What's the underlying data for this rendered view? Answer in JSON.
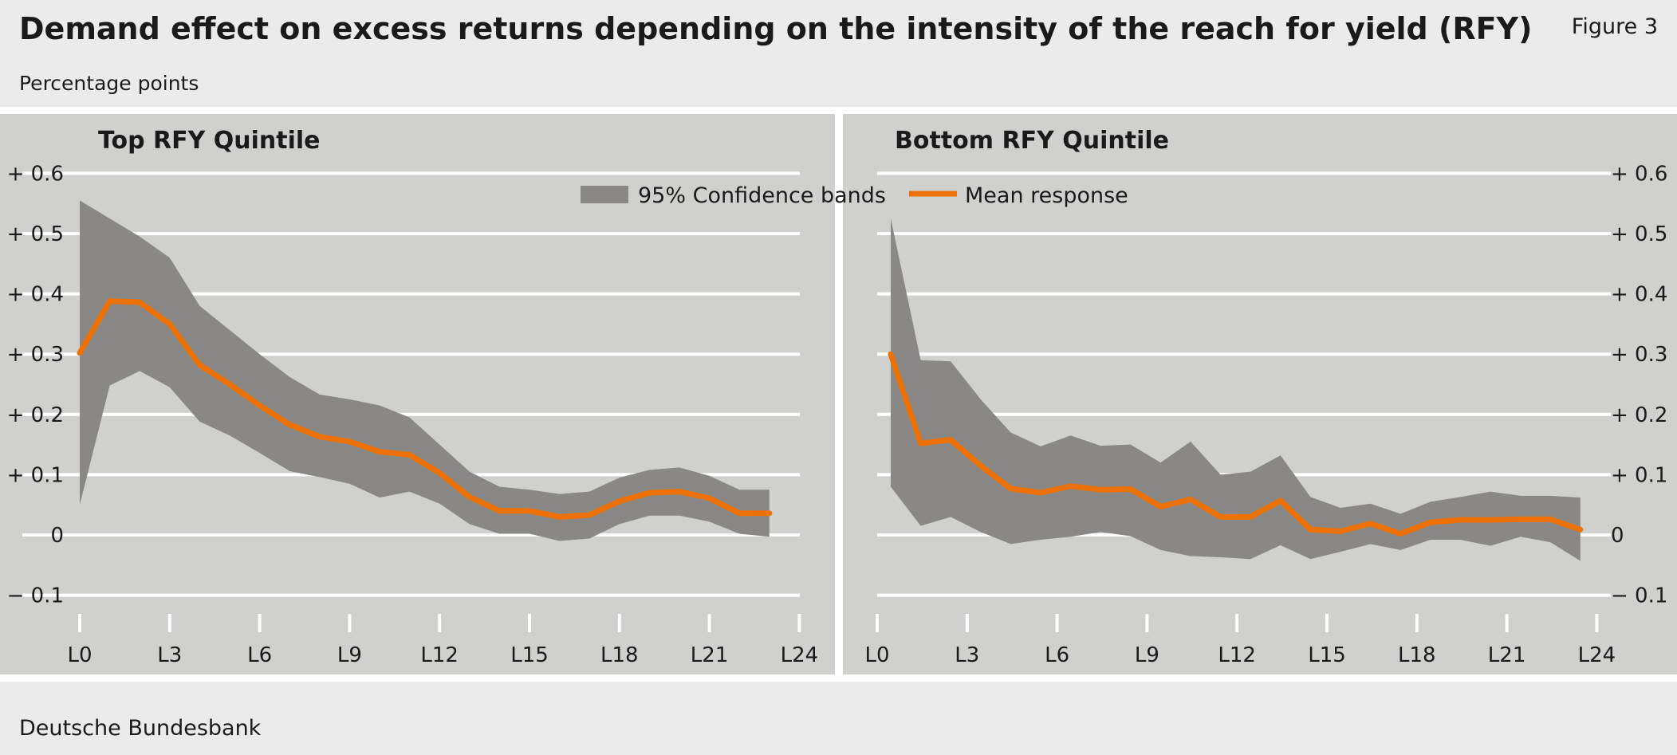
{
  "header": {
    "title": "Demand effect on excess returns depending on the intensity of the reach for yield (RFY)",
    "figure_label": "Figure 3",
    "subtitle": "Percentage points"
  },
  "footer": {
    "source": "Deutsche Bundesbank"
  },
  "colors": {
    "band": "#8a8886",
    "mean": "#ee7203",
    "panel_bg": "#d0d0cf",
    "grid": "#ffffff"
  },
  "chart_data": [
    {
      "type": "area",
      "title": "Top RFY Quintile",
      "x": [
        "L0",
        "L1",
        "L2",
        "L3",
        "L4",
        "L5",
        "L6",
        "L7",
        "L8",
        "L9",
        "L10",
        "L11",
        "L12",
        "L13",
        "L14",
        "L15",
        "L16",
        "L17",
        "L18",
        "L19",
        "L20",
        "L21",
        "L22",
        "L23"
      ],
      "x_ticks": [
        "L0",
        "L3",
        "L6",
        "L9",
        "L12",
        "L15",
        "L18",
        "L21",
        "L24"
      ],
      "ylim": [
        -0.1,
        0.6
      ],
      "y_ticks": [
        -0.1,
        0,
        0.1,
        0.2,
        0.3,
        0.4,
        0.5,
        0.6
      ],
      "y_tick_labels": [
        "− 0.1",
        "0",
        "+ 0.1",
        "+ 0.2",
        "+ 0.3",
        "+ 0.4",
        "+ 0.5",
        "+ 0.6"
      ],
      "grid": true,
      "series": [
        {
          "name": "95% Confidence bands",
          "kind": "band",
          "upper": [
            0.555,
            0.525,
            0.495,
            0.46,
            0.38,
            0.34,
            0.3,
            0.262,
            0.233,
            0.225,
            0.215,
            0.195,
            0.15,
            0.105,
            0.08,
            0.075,
            0.068,
            0.072,
            0.095,
            0.108,
            0.112,
            0.098,
            0.075,
            0.075
          ],
          "lower": [
            0.05,
            0.248,
            0.272,
            0.245,
            0.188,
            0.165,
            0.136,
            0.106,
            0.096,
            0.085,
            0.062,
            0.072,
            0.052,
            0.018,
            0.002,
            0.002,
            -0.01,
            -0.006,
            0.018,
            0.032,
            0.032,
            0.022,
            0.002,
            -0.003
          ]
        },
        {
          "name": "Mean response",
          "kind": "line",
          "values": [
            0.302,
            0.388,
            0.386,
            0.35,
            0.282,
            0.25,
            0.215,
            0.183,
            0.163,
            0.155,
            0.138,
            0.133,
            0.103,
            0.063,
            0.04,
            0.04,
            0.03,
            0.033,
            0.056,
            0.07,
            0.072,
            0.061,
            0.036,
            0.036
          ]
        }
      ]
    },
    {
      "type": "area",
      "title": "Bottom RFY Quintile",
      "x": [
        "L0",
        "L1",
        "L2",
        "L3",
        "L4",
        "L5",
        "L6",
        "L7",
        "L8",
        "L9",
        "L10",
        "L11",
        "L12",
        "L13",
        "L14",
        "L15",
        "L16",
        "L17",
        "L18",
        "L19",
        "L20",
        "L21",
        "L22",
        "L23"
      ],
      "x_ticks": [
        "L0",
        "L3",
        "L6",
        "L9",
        "L12",
        "L15",
        "L18",
        "L21",
        "L24"
      ],
      "ylim": [
        -0.1,
        0.6
      ],
      "y_ticks": [
        -0.1,
        0,
        0.1,
        0.2,
        0.3,
        0.4,
        0.5,
        0.6
      ],
      "y_tick_labels": [
        "− 0.1",
        "0",
        "+ 0.1",
        "+ 0.2",
        "+ 0.3",
        "+ 0.4",
        "+ 0.5",
        "+ 0.6"
      ],
      "grid": true,
      "series": [
        {
          "name": "95% Confidence bands",
          "kind": "band",
          "upper": [
            0.525,
            0.29,
            0.288,
            0.225,
            0.17,
            0.147,
            0.165,
            0.148,
            0.15,
            0.12,
            0.155,
            0.1,
            0.105,
            0.132,
            0.063,
            0.045,
            0.052,
            0.035,
            0.055,
            0.063,
            0.072,
            0.065,
            0.065,
            0.062
          ],
          "lower": [
            0.08,
            0.015,
            0.03,
            0.005,
            -0.015,
            -0.008,
            -0.003,
            0.005,
            -0.002,
            -0.025,
            -0.035,
            -0.037,
            -0.04,
            -0.017,
            -0.04,
            -0.028,
            -0.015,
            -0.025,
            -0.008,
            -0.008,
            -0.018,
            -0.003,
            -0.012,
            -0.043
          ]
        },
        {
          "name": "Mean response",
          "kind": "line",
          "values": [
            0.3,
            0.152,
            0.158,
            0.115,
            0.077,
            0.07,
            0.081,
            0.075,
            0.076,
            0.047,
            0.059,
            0.03,
            0.03,
            0.057,
            0.009,
            0.006,
            0.019,
            0.002,
            0.021,
            0.025,
            0.025,
            0.026,
            0.026,
            0.009
          ]
        }
      ]
    }
  ],
  "legend": {
    "band_label": "95% Confidence bands",
    "line_label": "Mean response",
    "placement": "top-center"
  }
}
